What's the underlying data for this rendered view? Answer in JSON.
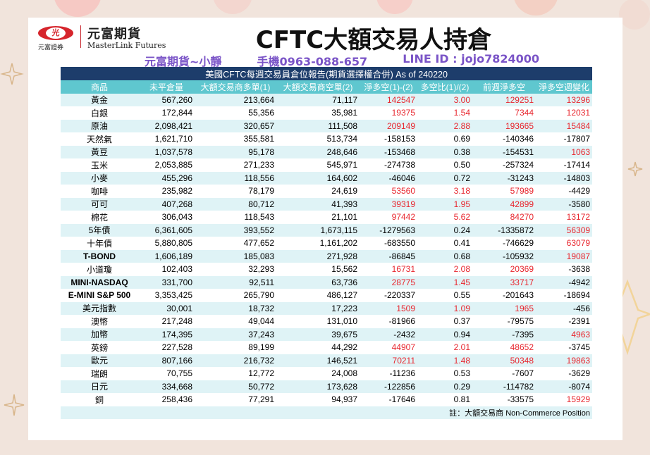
{
  "header": {
    "logo_oval_text": "光",
    "logo_subtitle": "元富證券",
    "logo_cn": "元富期貨",
    "logo_en": "MasterLink Futures",
    "title": "CFTC大額交易人持倉"
  },
  "contact": {
    "name": "元富期貨~小靜",
    "phone": "手機0963-088-657",
    "line": "LINE ID : jojo7824000"
  },
  "table": {
    "caption": "美國CFTC每週交易員倉位報告(期貨選擇權合併) As of  240220",
    "columns": [
      "商品",
      "未平倉量",
      "大額交易商多單(1)",
      "大額交易商空單(2)",
      "淨多空(1)-(2)",
      "多空比(1)/(2)",
      "前週淨多空",
      "淨多空週變化"
    ],
    "rows": [
      {
        "product": "黃金",
        "oi": "567,260",
        "long": "213,664",
        "short": "71,117",
        "net": "142547",
        "ratio": "3.00",
        "prev": "129251",
        "chg": "13296",
        "bold": false
      },
      {
        "product": "白銀",
        "oi": "172,844",
        "long": "55,356",
        "short": "35,981",
        "net": "19375",
        "ratio": "1.54",
        "prev": "7344",
        "chg": "12031",
        "bold": false
      },
      {
        "product": "原油",
        "oi": "2,098,421",
        "long": "320,657",
        "short": "111,508",
        "net": "209149",
        "ratio": "2.88",
        "prev": "193665",
        "chg": "15484",
        "bold": false
      },
      {
        "product": "天然氣",
        "oi": "1,621,710",
        "long": "355,581",
        "short": "513,734",
        "net": "-158153",
        "ratio": "0.69",
        "prev": "-140346",
        "chg": "-17807",
        "bold": false
      },
      {
        "product": "黃豆",
        "oi": "1,037,578",
        "long": "95,178",
        "short": "248,646",
        "net": "-153468",
        "ratio": "0.38",
        "prev": "-154531",
        "chg": "1063",
        "bold": false
      },
      {
        "product": "玉米",
        "oi": "2,053,885",
        "long": "271,233",
        "short": "545,971",
        "net": "-274738",
        "ratio": "0.50",
        "prev": "-257324",
        "chg": "-17414",
        "bold": false
      },
      {
        "product": "小麥",
        "oi": "455,296",
        "long": "118,556",
        "short": "164,602",
        "net": "-46046",
        "ratio": "0.72",
        "prev": "-31243",
        "chg": "-14803",
        "bold": false
      },
      {
        "product": "咖啡",
        "oi": "235,982",
        "long": "78,179",
        "short": "24,619",
        "net": "53560",
        "ratio": "3.18",
        "prev": "57989",
        "chg": "-4429",
        "bold": false
      },
      {
        "product": "可可",
        "oi": "407,268",
        "long": "80,712",
        "short": "41,393",
        "net": "39319",
        "ratio": "1.95",
        "prev": "42899",
        "chg": "-3580",
        "bold": false
      },
      {
        "product": "棉花",
        "oi": "306,043",
        "long": "118,543",
        "short": "21,101",
        "net": "97442",
        "ratio": "5.62",
        "prev": "84270",
        "chg": "13172",
        "bold": false
      },
      {
        "product": "5年債",
        "oi": "6,361,605",
        "long": "393,552",
        "short": "1,673,115",
        "net": "-1279563",
        "ratio": "0.24",
        "prev": "-1335872",
        "chg": "56309",
        "bold": false
      },
      {
        "product": "十年債",
        "oi": "5,880,805",
        "long": "477,652",
        "short": "1,161,202",
        "net": "-683550",
        "ratio": "0.41",
        "prev": "-746629",
        "chg": "63079",
        "bold": false
      },
      {
        "product": "T-BOND",
        "oi": "1,606,189",
        "long": "185,083",
        "short": "271,928",
        "net": "-86845",
        "ratio": "0.68",
        "prev": "-105932",
        "chg": "19087",
        "bold": true
      },
      {
        "product": "小道瓊",
        "oi": "102,403",
        "long": "32,293",
        "short": "15,562",
        "net": "16731",
        "ratio": "2.08",
        "prev": "20369",
        "chg": "-3638",
        "bold": false
      },
      {
        "product": "MINI-NASDAQ",
        "oi": "331,700",
        "long": "92,511",
        "short": "63,736",
        "net": "28775",
        "ratio": "1.45",
        "prev": "33717",
        "chg": "-4942",
        "bold": true
      },
      {
        "product": "E-MINI S&P 500",
        "oi": "3,353,425",
        "long": "265,790",
        "short": "486,127",
        "net": "-220337",
        "ratio": "0.55",
        "prev": "-201643",
        "chg": "-18694",
        "bold": true
      },
      {
        "product": "美元指數",
        "oi": "30,001",
        "long": "18,732",
        "short": "17,223",
        "net": "1509",
        "ratio": "1.09",
        "prev": "1965",
        "chg": "-456",
        "bold": false
      },
      {
        "product": "澳幣",
        "oi": "217,248",
        "long": "49,044",
        "short": "131,010",
        "net": "-81966",
        "ratio": "0.37",
        "prev": "-79575",
        "chg": "-2391",
        "bold": false
      },
      {
        "product": "加幣",
        "oi": "174,395",
        "long": "37,243",
        "short": "39,675",
        "net": "-2432",
        "ratio": "0.94",
        "prev": "-7395",
        "chg": "4963",
        "bold": false
      },
      {
        "product": "英鎊",
        "oi": "227,528",
        "long": "89,199",
        "short": "44,292",
        "net": "44907",
        "ratio": "2.01",
        "prev": "48652",
        "chg": "-3745",
        "bold": false
      },
      {
        "product": "歐元",
        "oi": "807,166",
        "long": "216,732",
        "short": "146,521",
        "net": "70211",
        "ratio": "1.48",
        "prev": "50348",
        "chg": "19863",
        "bold": false
      },
      {
        "product": "瑞朗",
        "oi": "70,755",
        "long": "12,772",
        "short": "24,008",
        "net": "-11236",
        "ratio": "0.53",
        "prev": "-7607",
        "chg": "-3629",
        "bold": false
      },
      {
        "product": "日元",
        "oi": "334,668",
        "long": "50,772",
        "short": "173,628",
        "net": "-122856",
        "ratio": "0.29",
        "prev": "-114782",
        "chg": "-8074",
        "bold": false
      },
      {
        "product": "銅",
        "oi": "258,436",
        "long": "77,291",
        "short": "94,937",
        "net": "-17646",
        "ratio": "0.81",
        "prev": "-33575",
        "chg": "15929",
        "bold": false
      }
    ],
    "footnote": "註：大額交易商 Non-Commerce Position"
  },
  "colors": {
    "positive": "#e8262e",
    "negative": "#111111",
    "header_dark": "#1d3d6b",
    "header_teal": "#5fc7cf",
    "row_stripe": "#dff3f6",
    "contact_purple": "#7a54c7"
  }
}
